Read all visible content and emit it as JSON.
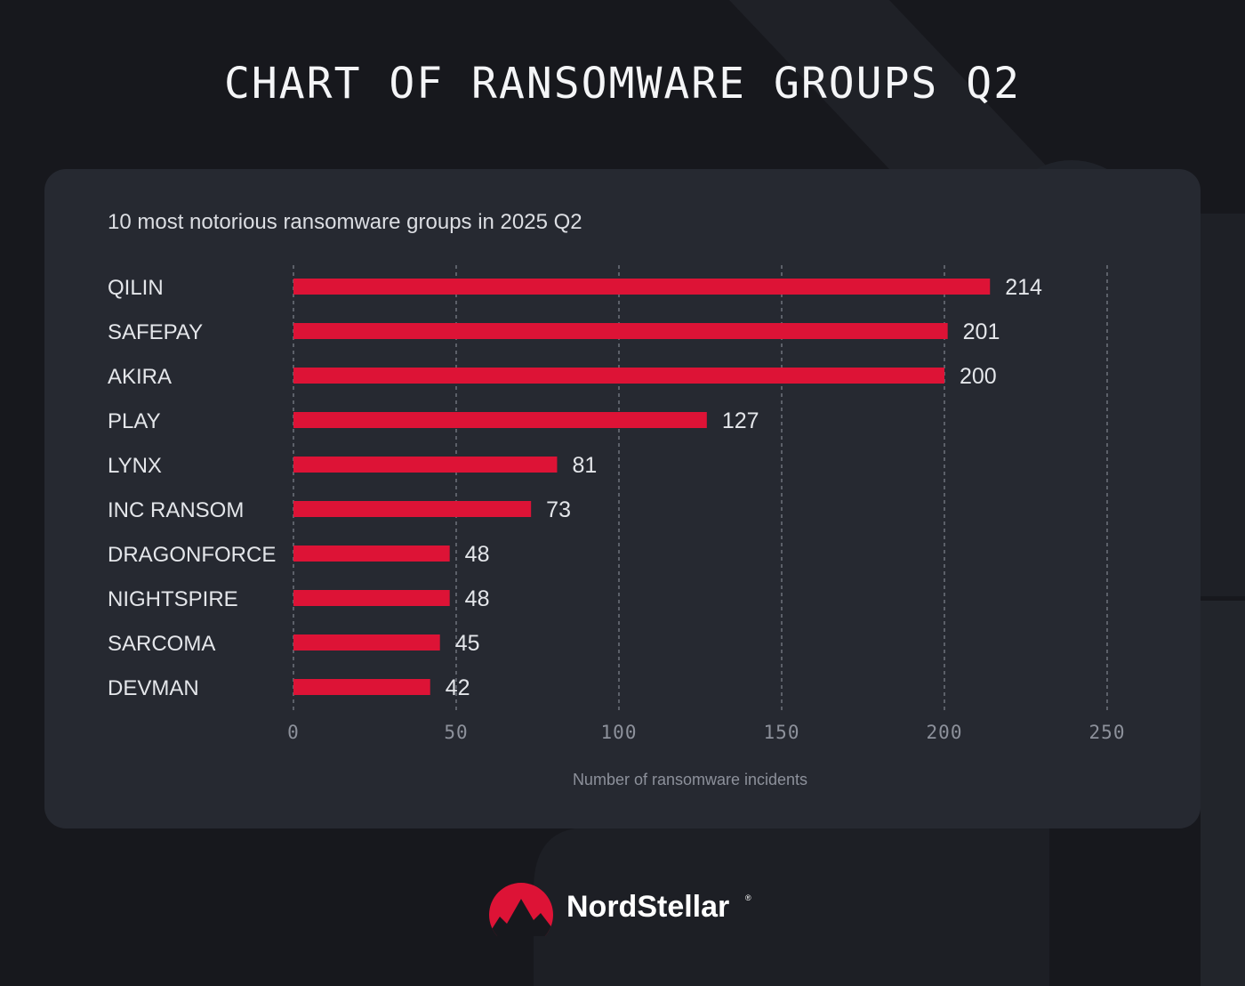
{
  "page": {
    "title": "CHART OF RANSOMWARE GROUPS Q2"
  },
  "brand": {
    "name": "NordStellar",
    "registered_mark": "®",
    "logo_icon": "mountain-logo-icon",
    "accent_color": "#dd1336"
  },
  "colors": {
    "background": "#17181d",
    "panel": "#262931",
    "bar": "#dd1336"
  },
  "chart_data": {
    "type": "bar",
    "orientation": "horizontal",
    "subtitle": "10 most notorious ransomware groups in 2025 Q2",
    "categories": [
      "QILIN",
      "SAFEPAY",
      "AKIRA",
      "PLAY",
      "LYNX",
      "INC RANSOM",
      "DRAGONFORCE",
      "NIGHTSPIRE",
      "SARCOMA",
      "DEVMAN"
    ],
    "values": [
      214,
      201,
      200,
      127,
      81,
      73,
      48,
      48,
      45,
      42
    ],
    "xlabel": "Number of ransomware incidents",
    "ylabel": "",
    "xlim": [
      0,
      250
    ],
    "xticks": [
      0,
      50,
      100,
      150,
      200,
      250
    ],
    "grid": "vertical dashed",
    "legend": "none"
  }
}
